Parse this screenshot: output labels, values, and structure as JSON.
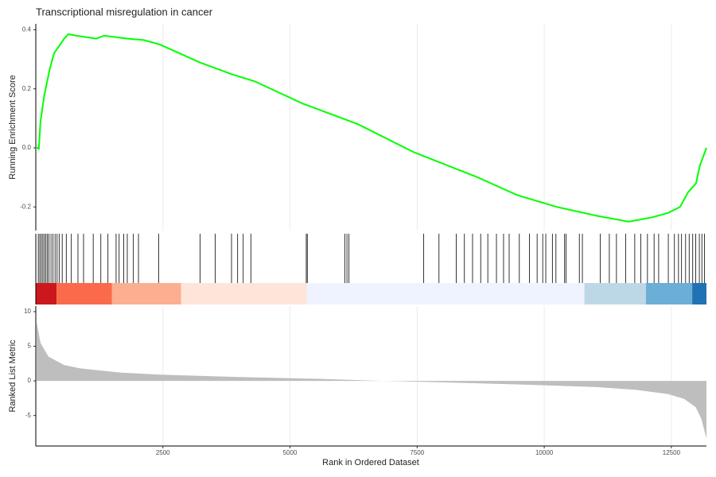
{
  "chart_data": [
    {
      "type": "line",
      "title": "Transcriptional misregulation in cancer",
      "y_label": "Running Enrichment Score",
      "color": "#00ff00",
      "x": [
        1,
        47,
        60,
        94,
        170,
        280,
        360,
        480,
        560,
        640,
        800,
        1190,
        1340,
        1810,
        2125,
        2440,
        3220,
        3840,
        4310,
        5250,
        6340,
        7440,
        8690,
        9470,
        10250,
        11030,
        11660,
        12125,
        12440,
        12670,
        12830,
        12985,
        13060,
        13190
      ],
      "values": [
        0,
        0,
        -0.005,
        0.09,
        0.18,
        0.27,
        0.32,
        0.35,
        0.37,
        0.385,
        0.38,
        0.37,
        0.38,
        0.37,
        0.365,
        0.35,
        0.29,
        0.25,
        0.225,
        0.15,
        0.08,
        -0.015,
        -0.1,
        -0.16,
        -0.2,
        -0.23,
        -0.25,
        -0.235,
        -0.22,
        -0.2,
        -0.15,
        -0.12,
        -0.06,
        0.0
      ],
      "xlim": [
        1,
        13190
      ],
      "ylim": [
        -0.28,
        0.42
      ],
      "yticks": [
        -0.2,
        {
          "value": 0,
          "label": "0.0"
        },
        0.2,
        0.4
      ],
      "grid": true
    },
    {
      "type": "rug",
      "color": "#000000",
      "xlim": [
        1,
        13190
      ],
      "x": [
        50,
        80,
        110,
        140,
        170,
        200,
        230,
        260,
        300,
        340,
        380,
        420,
        460,
        520,
        600,
        700,
        830,
        940,
        1130,
        1280,
        1420,
        1580,
        1640,
        1730,
        1800,
        1920,
        2020,
        2420,
        3230,
        3530,
        3850,
        3970,
        4080,
        4230,
        5320,
        5340,
        6080,
        6120,
        6160,
        7630,
        7930,
        8270,
        8430,
        8590,
        8750,
        8890,
        9060,
        9200,
        9310,
        9510,
        9710,
        9860,
        9970,
        10030,
        10160,
        10230,
        10400,
        10430,
        10690,
        10750,
        11100,
        11280,
        11420,
        11600,
        11780,
        11900,
        12030,
        12160,
        12250,
        12440,
        12560,
        12640,
        12700,
        12780,
        12850,
        12920,
        12980,
        13050,
        13100,
        13150
      ],
      "band_edges": [
        1,
        410,
        1500,
        2860,
        5330,
        10790,
        12000,
        12910,
        13190
      ],
      "band_colors": [
        "#cb181d",
        "#fb6a4a",
        "#fcae91",
        "#fee5d9",
        "#eff3ff",
        "#bdd7e7",
        "#6baed6",
        "#2171b5"
      ]
    },
    {
      "type": "area",
      "x_label": "Rank in Ordered Dataset",
      "y_label": "Ranked List Metric",
      "color": "#bebebe",
      "x": [
        16,
        94,
        250,
        560,
        875,
        1660,
        2440,
        4000,
        5560,
        6810,
        7910,
        9470,
        11030,
        11810,
        12440,
        12750,
        12980,
        13090,
        13190
      ],
      "values": [
        8.5,
        5.5,
        3.5,
        2.3,
        1.8,
        1.2,
        0.9,
        0.55,
        0.3,
        0.0,
        -0.2,
        -0.5,
        -0.9,
        -1.3,
        -1.9,
        -2.6,
        -3.8,
        -5.5,
        -8.3
      ],
      "xlim": [
        1,
        13190
      ],
      "ylim": [
        -9.4,
        10.8
      ],
      "xticks": [
        2500,
        5000,
        7500,
        10000,
        12500
      ],
      "yticks": [
        -5,
        0,
        5,
        10
      ],
      "grid": true
    }
  ]
}
